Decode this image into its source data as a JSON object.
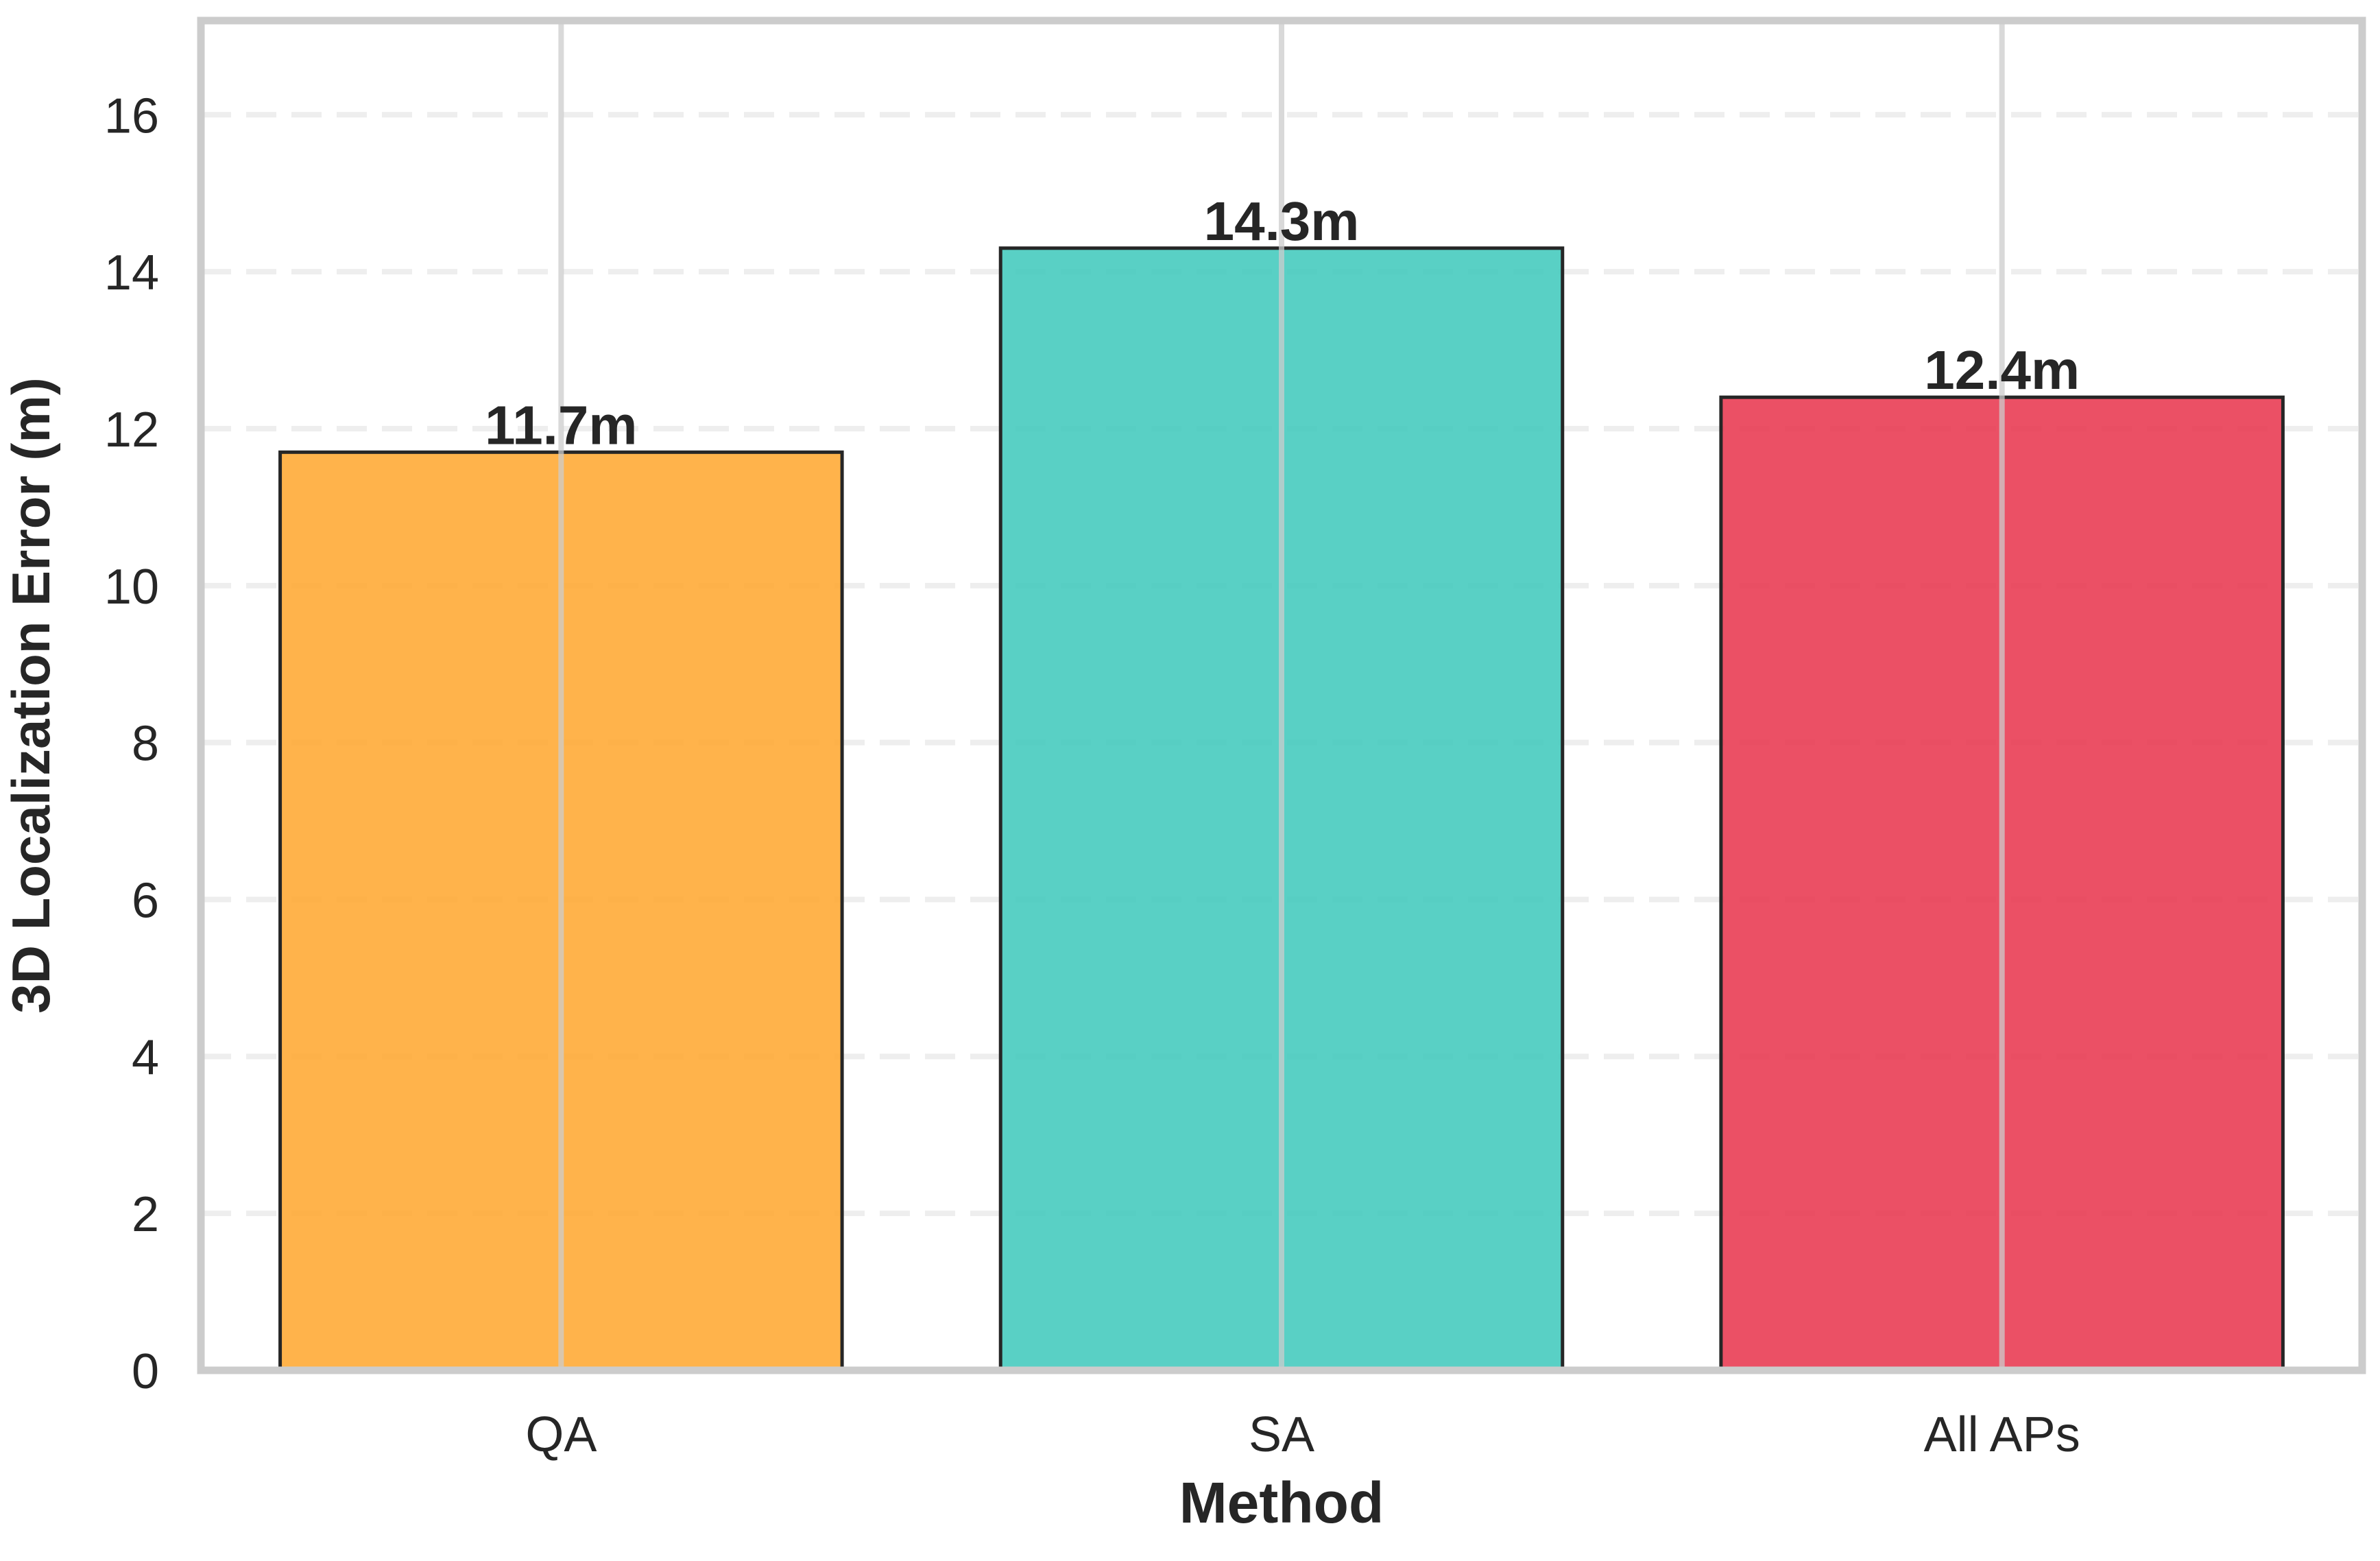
{
  "chart_data": {
    "type": "bar",
    "title": "",
    "xlabel": "Method",
    "ylabel": "3D Localization Error (m)",
    "categories": [
      "QA",
      "SA",
      "All APs"
    ],
    "values": [
      11.7,
      14.3,
      12.4
    ],
    "value_labels": [
      "11.7m",
      "14.3m",
      "12.4m"
    ],
    "bar_colors": [
      "#FFA62B",
      "#3CC8BB",
      "#E8314A"
    ],
    "bar_edge_color": "#262626",
    "ylim": [
      0,
      17.2
    ],
    "yticks": [
      0,
      2,
      4,
      6,
      8,
      10,
      12,
      14,
      16
    ],
    "grid": {
      "y": true,
      "y_style": "dashed",
      "x": true,
      "color": "#dddddd"
    },
    "legend": "none",
    "frame_color": "#cccccc"
  }
}
